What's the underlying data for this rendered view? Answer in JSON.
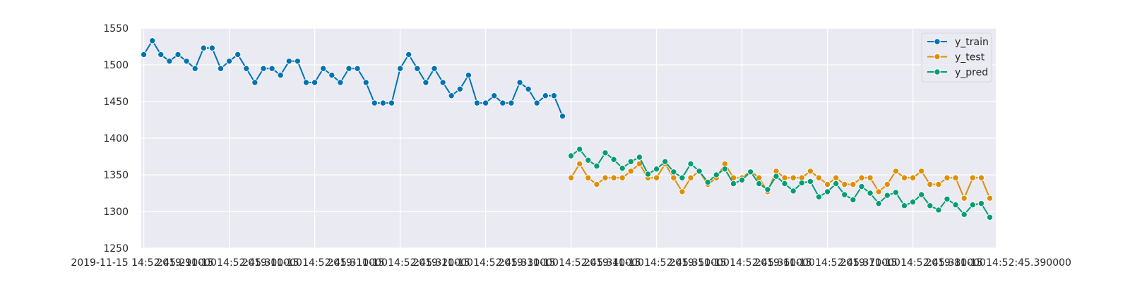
{
  "chart_data": {
    "type": "line",
    "title": "",
    "xlabel": "",
    "ylabel": "",
    "ylim": [
      1250,
      1550
    ],
    "yticks": [
      1250,
      1300,
      1350,
      1400,
      1450,
      1500,
      1550
    ],
    "grid": true,
    "legend_position": "top-right",
    "xtick_labels": [
      "2019-11-15 14:52:45.290000",
      "2019-11-15 14:52:45.300000",
      "2019-11-15 14:52:45.310000",
      "2019-11-15 14:52:45.320000",
      "2019-11-15 14:52:45.330000",
      "2019-11-15 14:52:45.340000",
      "2019-11-15 14:52:45.350000",
      "2019-11-15 14:52:45.360000",
      "2019-11-15 14:52:45.370000",
      "2019-11-15 14:52:45.380000",
      "2019-11-15 14:52:45.390000"
    ],
    "series": [
      {
        "name": "y_train",
        "color": "#0173b2",
        "values": [
          1514,
          1533,
          1514,
          1505,
          1514,
          1505,
          1495,
          1523,
          1523,
          1495,
          1505,
          1514,
          1495,
          1476,
          1495,
          1495,
          1486,
          1505,
          1505,
          1476,
          1476,
          1495,
          1486,
          1476,
          1495,
          1495,
          1476,
          1448,
          1448,
          1448,
          1495,
          1514,
          1495,
          1476,
          1495,
          1476,
          1458,
          1467,
          1486,
          1448,
          1448,
          1458,
          1448,
          1448,
          1476,
          1467,
          1448,
          1458,
          1458,
          1430
        ]
      },
      {
        "name": "y_test",
        "color": "#de8f05",
        "values": [
          1346,
          1365,
          1346,
          1337,
          1346,
          1346,
          1346,
          1355,
          1365,
          1346,
          1346,
          1365,
          1346,
          1327,
          1346,
          1355,
          1337,
          1346,
          1365,
          1346,
          1346,
          1355,
          1346,
          1327,
          1355,
          1346,
          1346,
          1346,
          1355,
          1346,
          1337,
          1346,
          1337,
          1337,
          1346,
          1346,
          1327,
          1337,
          1355,
          1346,
          1346,
          1355,
          1337,
          1337,
          1346,
          1346,
          1318,
          1346,
          1346,
          1318
        ]
      },
      {
        "name": "y_pred",
        "color": "#029e73",
        "values": [
          1376,
          1385,
          1370,
          1362,
          1380,
          1371,
          1359,
          1368,
          1374,
          1351,
          1358,
          1368,
          1354,
          1346,
          1365,
          1355,
          1340,
          1350,
          1358,
          1338,
          1343,
          1354,
          1338,
          1330,
          1348,
          1338,
          1328,
          1339,
          1341,
          1320,
          1327,
          1338,
          1323,
          1316,
          1334,
          1325,
          1311,
          1322,
          1326,
          1308,
          1313,
          1323,
          1308,
          1302,
          1317,
          1309,
          1296,
          1309,
          1311,
          1292
        ]
      }
    ]
  }
}
